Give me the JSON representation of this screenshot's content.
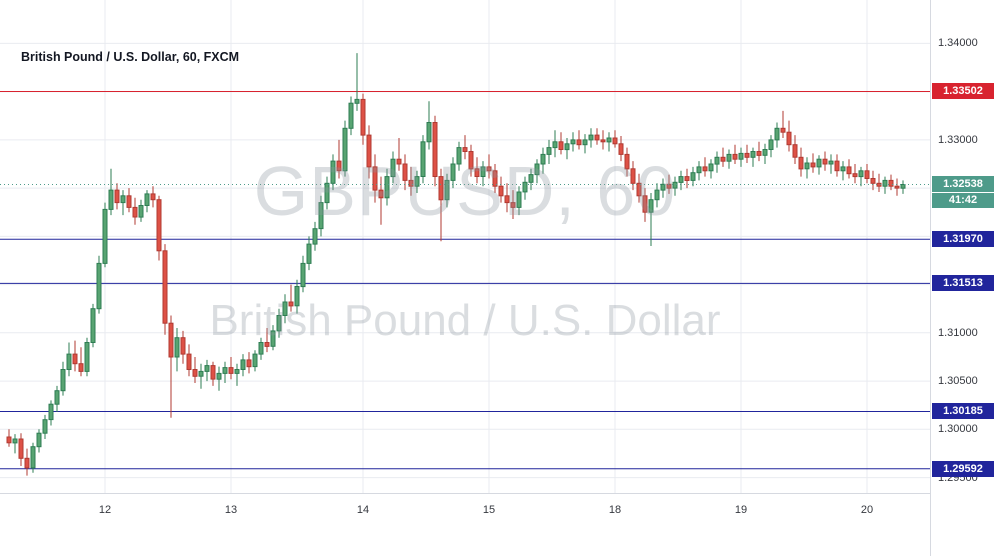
{
  "header": {
    "symbol_title": "British Pound / U.S. Dollar, 60, FXCM"
  },
  "watermark": {
    "line1": "GBPUSD, 60",
    "line2": "British Pound / U.S. Dollar"
  },
  "price_scale": {
    "visible_ticks": [
      {
        "text": "1.34000",
        "price": 1.34
      },
      {
        "text": "1.33000",
        "price": 1.33
      },
      {
        "text": "1.31000",
        "price": 1.31
      },
      {
        "text": "1.30500",
        "price": 1.305
      },
      {
        "text": "1.30000",
        "price": 1.3
      },
      {
        "text": "1.29500",
        "price": 1.295
      }
    ]
  },
  "time_scale": {
    "ticks": [
      {
        "label": "12",
        "index": 16
      },
      {
        "label": "13",
        "index": 37
      },
      {
        "label": "14",
        "index": 59
      },
      {
        "label": "15",
        "index": 80
      },
      {
        "label": "18",
        "index": 101
      },
      {
        "label": "19",
        "index": 122
      },
      {
        "label": "20",
        "index": 143
      }
    ]
  },
  "levels": [
    {
      "label": "1.33502",
      "price": 1.33502,
      "color": "#d8232f"
    },
    {
      "label": "1.31970",
      "price": 1.3197,
      "color": "#21259c"
    },
    {
      "label": "1.31513",
      "price": 1.31513,
      "color": "#21259c"
    },
    {
      "label": "1.30185",
      "price": 1.30185,
      "color": "#21259c"
    },
    {
      "label": "1.29592",
      "price": 1.29592,
      "color": "#21259c"
    }
  ],
  "last_price": {
    "label": "1.32538",
    "value": 1.32538,
    "countdown": "41:42",
    "color": "#4e9b8a"
  },
  "style": {
    "up_fill": "#58a472",
    "up_border": "#2e7d53",
    "down_fill": "#de5146",
    "down_border": "#b03a32",
    "grid_color": "#e9ebf0",
    "axis_line_color": "#d6d9e0",
    "axis_text_color": "#35383f",
    "watermark_color": "rgba(140,148,160,0.32)"
  },
  "chart_data": {
    "type": "candlestick",
    "symbol": "GBPUSD",
    "interval_minutes": 60,
    "exchange": "FXCM",
    "title": "British Pound / U.S. Dollar, 60, FXCM",
    "price_range": [
      1.2934,
      1.3445
    ],
    "grid_prices": [
      1.295,
      1.3,
      1.305,
      1.31,
      1.315,
      1.32,
      1.325,
      1.33,
      1.335,
      1.34
    ],
    "x_axis_days": [
      "12",
      "13",
      "14",
      "15",
      "18",
      "19",
      "20"
    ],
    "last_close": 1.32538,
    "ohlc": [
      [
        1.2992,
        1.3,
        1.2982,
        1.2986
      ],
      [
        1.2986,
        1.2995,
        1.2975,
        1.299
      ],
      [
        1.299,
        1.2996,
        1.2962,
        1.297
      ],
      [
        1.297,
        1.298,
        1.2952,
        1.296
      ],
      [
        1.296,
        1.2986,
        1.2955,
        1.2982
      ],
      [
        1.2982,
        1.3,
        1.2976,
        1.2996
      ],
      [
        1.2996,
        1.3015,
        1.299,
        1.301
      ],
      [
        1.301,
        1.303,
        1.3004,
        1.3026
      ],
      [
        1.3026,
        1.3045,
        1.3018,
        1.304
      ],
      [
        1.304,
        1.307,
        1.3035,
        1.3062
      ],
      [
        1.3062,
        1.309,
        1.3055,
        1.3078
      ],
      [
        1.3078,
        1.3092,
        1.306,
        1.3068
      ],
      [
        1.3068,
        1.3085,
        1.3055,
        1.306
      ],
      [
        1.306,
        1.3095,
        1.3055,
        1.309
      ],
      [
        1.309,
        1.313,
        1.3085,
        1.3125
      ],
      [
        1.3125,
        1.318,
        1.312,
        1.3172
      ],
      [
        1.3172,
        1.3235,
        1.3168,
        1.3228
      ],
      [
        1.3228,
        1.327,
        1.3222,
        1.3248
      ],
      [
        1.3248,
        1.3255,
        1.3228,
        1.3235
      ],
      [
        1.3235,
        1.3248,
        1.3222,
        1.3242
      ],
      [
        1.3242,
        1.325,
        1.3225,
        1.323
      ],
      [
        1.323,
        1.324,
        1.3212,
        1.322
      ],
      [
        1.322,
        1.3238,
        1.3215,
        1.3232
      ],
      [
        1.3232,
        1.3248,
        1.3225,
        1.3244
      ],
      [
        1.3244,
        1.3252,
        1.323,
        1.3238
      ],
      [
        1.3238,
        1.3242,
        1.3175,
        1.3185
      ],
      [
        1.3185,
        1.3192,
        1.3098,
        1.311
      ],
      [
        1.311,
        1.3118,
        1.3012,
        1.3075
      ],
      [
        1.3075,
        1.3105,
        1.306,
        1.3095
      ],
      [
        1.3095,
        1.3102,
        1.3068,
        1.3078
      ],
      [
        1.3078,
        1.3088,
        1.3055,
        1.3062
      ],
      [
        1.3062,
        1.3075,
        1.3048,
        1.3055
      ],
      [
        1.3055,
        1.3068,
        1.3042,
        1.306
      ],
      [
        1.306,
        1.3072,
        1.305,
        1.3066
      ],
      [
        1.3066,
        1.307,
        1.3045,
        1.3052
      ],
      [
        1.3052,
        1.3065,
        1.304,
        1.3058
      ],
      [
        1.3058,
        1.307,
        1.3048,
        1.3064
      ],
      [
        1.3064,
        1.3075,
        1.3052,
        1.3058
      ],
      [
        1.3058,
        1.3068,
        1.3045,
        1.3062
      ],
      [
        1.3062,
        1.3078,
        1.3055,
        1.3072
      ],
      [
        1.3072,
        1.308,
        1.3058,
        1.3065
      ],
      [
        1.3065,
        1.3082,
        1.306,
        1.3078
      ],
      [
        1.3078,
        1.3095,
        1.3072,
        1.309
      ],
      [
        1.309,
        1.3105,
        1.308,
        1.3086
      ],
      [
        1.3086,
        1.3108,
        1.3082,
        1.3102
      ],
      [
        1.3102,
        1.3125,
        1.3095,
        1.3118
      ],
      [
        1.3118,
        1.314,
        1.311,
        1.3132
      ],
      [
        1.3132,
        1.315,
        1.3122,
        1.3128
      ],
      [
        1.3128,
        1.3155,
        1.312,
        1.3148
      ],
      [
        1.3148,
        1.318,
        1.3142,
        1.3172
      ],
      [
        1.3172,
        1.32,
        1.3165,
        1.3192
      ],
      [
        1.3192,
        1.3215,
        1.3185,
        1.3208
      ],
      [
        1.3208,
        1.3242,
        1.32,
        1.3235
      ],
      [
        1.3235,
        1.3262,
        1.3228,
        1.3255
      ],
      [
        1.3255,
        1.3285,
        1.3248,
        1.3278
      ],
      [
        1.3278,
        1.33,
        1.326,
        1.3268
      ],
      [
        1.3268,
        1.332,
        1.3262,
        1.3312
      ],
      [
        1.3312,
        1.3345,
        1.3305,
        1.3338
      ],
      [
        1.3338,
        1.339,
        1.333,
        1.3342
      ],
      [
        1.3342,
        1.3348,
        1.3295,
        1.3305
      ],
      [
        1.3305,
        1.3315,
        1.326,
        1.3272
      ],
      [
        1.3272,
        1.3285,
        1.3235,
        1.3248
      ],
      [
        1.3248,
        1.3262,
        1.3212,
        1.324
      ],
      [
        1.324,
        1.327,
        1.3232,
        1.3262
      ],
      [
        1.3262,
        1.3288,
        1.3255,
        1.328
      ],
      [
        1.328,
        1.3302,
        1.3268,
        1.3275
      ],
      [
        1.3275,
        1.3285,
        1.3248,
        1.3258
      ],
      [
        1.3258,
        1.3272,
        1.3242,
        1.3252
      ],
      [
        1.3252,
        1.3268,
        1.3245,
        1.3262
      ],
      [
        1.3262,
        1.3305,
        1.3255,
        1.3298
      ],
      [
        1.3298,
        1.334,
        1.329,
        1.3318
      ],
      [
        1.3318,
        1.3325,
        1.3252,
        1.3262
      ],
      [
        1.3262,
        1.327,
        1.3195,
        1.3238
      ],
      [
        1.3238,
        1.3265,
        1.323,
        1.3258
      ],
      [
        1.3258,
        1.3282,
        1.325,
        1.3275
      ],
      [
        1.3275,
        1.3298,
        1.3268,
        1.3292
      ],
      [
        1.3292,
        1.3305,
        1.328,
        1.3288
      ],
      [
        1.3288,
        1.3295,
        1.3262,
        1.327
      ],
      [
        1.327,
        1.3282,
        1.3255,
        1.3262
      ],
      [
        1.3262,
        1.3278,
        1.3252,
        1.3272
      ],
      [
        1.3272,
        1.3285,
        1.326,
        1.3268
      ],
      [
        1.3268,
        1.3275,
        1.3245,
        1.3252
      ],
      [
        1.3252,
        1.3262,
        1.3235,
        1.3242
      ],
      [
        1.3242,
        1.3255,
        1.3225,
        1.3235
      ],
      [
        1.3235,
        1.3248,
        1.3218,
        1.323
      ],
      [
        1.323,
        1.3252,
        1.3222,
        1.3246
      ],
      [
        1.3246,
        1.3262,
        1.3238,
        1.3256
      ],
      [
        1.3256,
        1.327,
        1.3248,
        1.3264
      ],
      [
        1.3264,
        1.328,
        1.3255,
        1.3275
      ],
      [
        1.3275,
        1.3292,
        1.3265,
        1.3285
      ],
      [
        1.3285,
        1.33,
        1.3275,
        1.3292
      ],
      [
        1.3292,
        1.331,
        1.3282,
        1.3298
      ],
      [
        1.3298,
        1.3308,
        1.3285,
        1.329
      ],
      [
        1.329,
        1.3302,
        1.328,
        1.3296
      ],
      [
        1.3296,
        1.3308,
        1.3288,
        1.33
      ],
      [
        1.33,
        1.331,
        1.329,
        1.3295
      ],
      [
        1.3295,
        1.3306,
        1.3286,
        1.33
      ],
      [
        1.33,
        1.3312,
        1.3292,
        1.3305
      ],
      [
        1.3305,
        1.3312,
        1.3295,
        1.33
      ],
      [
        1.33,
        1.331,
        1.329,
        1.3298
      ],
      [
        1.3298,
        1.3308,
        1.3288,
        1.3302
      ],
      [
        1.3302,
        1.331,
        1.3292,
        1.3296
      ],
      [
        1.3296,
        1.3304,
        1.3278,
        1.3285
      ],
      [
        1.3285,
        1.3292,
        1.3262,
        1.327
      ],
      [
        1.327,
        1.3278,
        1.3248,
        1.3255
      ],
      [
        1.3255,
        1.3265,
        1.3235,
        1.3242
      ],
      [
        1.3242,
        1.325,
        1.3215,
        1.3225
      ],
      [
        1.3225,
        1.3245,
        1.319,
        1.3238
      ],
      [
        1.3238,
        1.3255,
        1.323,
        1.3248
      ],
      [
        1.3248,
        1.326,
        1.324,
        1.3254
      ],
      [
        1.3254,
        1.3264,
        1.3244,
        1.325
      ],
      [
        1.325,
        1.3262,
        1.3242,
        1.3256
      ],
      [
        1.3256,
        1.3268,
        1.3248,
        1.3262
      ],
      [
        1.3262,
        1.327,
        1.325,
        1.3258
      ],
      [
        1.3258,
        1.3272,
        1.3252,
        1.3266
      ],
      [
        1.3266,
        1.3278,
        1.3258,
        1.3272
      ],
      [
        1.3272,
        1.3282,
        1.3262,
        1.3268
      ],
      [
        1.3268,
        1.328,
        1.326,
        1.3275
      ],
      [
        1.3275,
        1.3288,
        1.3266,
        1.3282
      ],
      [
        1.3282,
        1.3292,
        1.3272,
        1.3278
      ],
      [
        1.3278,
        1.329,
        1.327,
        1.3285
      ],
      [
        1.3285,
        1.3295,
        1.3275,
        1.328
      ],
      [
        1.328,
        1.3292,
        1.3272,
        1.3286
      ],
      [
        1.3286,
        1.3295,
        1.3276,
        1.3282
      ],
      [
        1.3282,
        1.3292,
        1.3272,
        1.3288
      ],
      [
        1.3288,
        1.3298,
        1.3278,
        1.3284
      ],
      [
        1.3284,
        1.3296,
        1.3275,
        1.329
      ],
      [
        1.329,
        1.3305,
        1.3282,
        1.33
      ],
      [
        1.33,
        1.3318,
        1.3292,
        1.3312
      ],
      [
        1.3312,
        1.333,
        1.3302,
        1.3308
      ],
      [
        1.3308,
        1.332,
        1.3288,
        1.3295
      ],
      [
        1.3295,
        1.3305,
        1.3275,
        1.3282
      ],
      [
        1.3282,
        1.3292,
        1.3262,
        1.327
      ],
      [
        1.327,
        1.3282,
        1.326,
        1.3276
      ],
      [
        1.3276,
        1.3286,
        1.3266,
        1.3272
      ],
      [
        1.3272,
        1.3284,
        1.3264,
        1.328
      ],
      [
        1.328,
        1.3288,
        1.3268,
        1.3275
      ],
      [
        1.3275,
        1.3285,
        1.3265,
        1.3278
      ],
      [
        1.3278,
        1.3285,
        1.3262,
        1.3268
      ],
      [
        1.3268,
        1.3278,
        1.3258,
        1.3272
      ],
      [
        1.3272,
        1.328,
        1.326,
        1.3265
      ],
      [
        1.3265,
        1.3275,
        1.3255,
        1.3262
      ],
      [
        1.3262,
        1.3272,
        1.3252,
        1.3268
      ],
      [
        1.3268,
        1.3275,
        1.3255,
        1.326
      ],
      [
        1.326,
        1.3268,
        1.3248,
        1.3255
      ],
      [
        1.3255,
        1.3265,
        1.3246,
        1.3252
      ],
      [
        1.3252,
        1.3262,
        1.3244,
        1.3258
      ],
      [
        1.3258,
        1.3264,
        1.3248,
        1.3252
      ],
      [
        1.3252,
        1.326,
        1.3242,
        1.325
      ],
      [
        1.325,
        1.3258,
        1.3244,
        1.32538
      ]
    ]
  }
}
